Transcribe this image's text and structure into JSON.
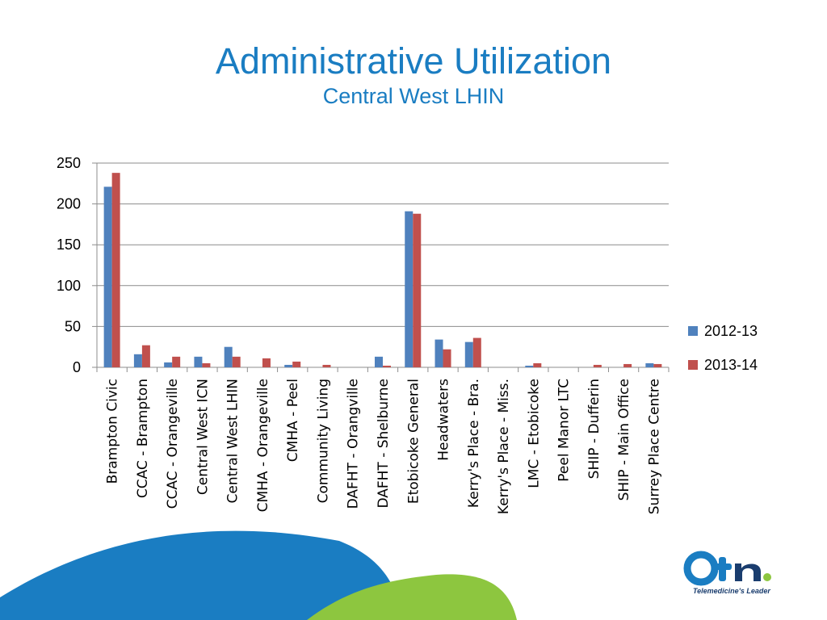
{
  "slide": {
    "title": "Administrative Utilization",
    "subtitle": "Central West LHIN"
  },
  "logo": {
    "wordmark": "otn",
    "tagline": "Telemedicine's Leader",
    "colors": {
      "primary": "#1a7dc2",
      "dark": "#1a3d6e",
      "dot": "#8dc63f"
    }
  },
  "decoration": {
    "wave_blue": "#1a7dc2",
    "wave_green": "#8dc63f"
  },
  "chart_data": {
    "type": "bar",
    "categories": [
      "Brampton Civic",
      "CCAC - Brampton",
      "CCAC - Orangeville",
      "Central West ICN",
      "Central West LHIN",
      "CMHA - Orangeville",
      "CMHA - Peel",
      "Community Living",
      "DAFHT - Orangville",
      "DAFHT - Shelburne",
      "Etobicoke General",
      "Headwaters",
      "Kerry's Place - Bra.",
      "Kerry's Place - Miss.",
      "LMC - Etobicoke",
      "Peel Manor LTC",
      "SHIP - Dufferin",
      "SHIP - Main Office",
      "Surrey Place Centre"
    ],
    "series": [
      {
        "name": "2012-13",
        "color": "#4f81bd",
        "values": [
          221,
          16,
          6,
          13,
          25,
          0,
          3,
          0,
          0,
          13,
          191,
          34,
          31,
          0,
          2,
          0,
          0,
          0,
          5
        ]
      },
      {
        "name": "2013-14",
        "color": "#c0504d",
        "values": [
          238,
          27,
          13,
          5,
          13,
          11,
          7,
          3,
          0,
          2,
          188,
          22,
          36,
          0,
          5,
          0,
          3,
          4,
          4
        ]
      }
    ],
    "y_ticks": [
      "0",
      "50",
      "100",
      "150",
      "200",
      "250"
    ],
    "ylim": [
      0,
      250
    ],
    "grid": true,
    "legend_position": "right"
  }
}
